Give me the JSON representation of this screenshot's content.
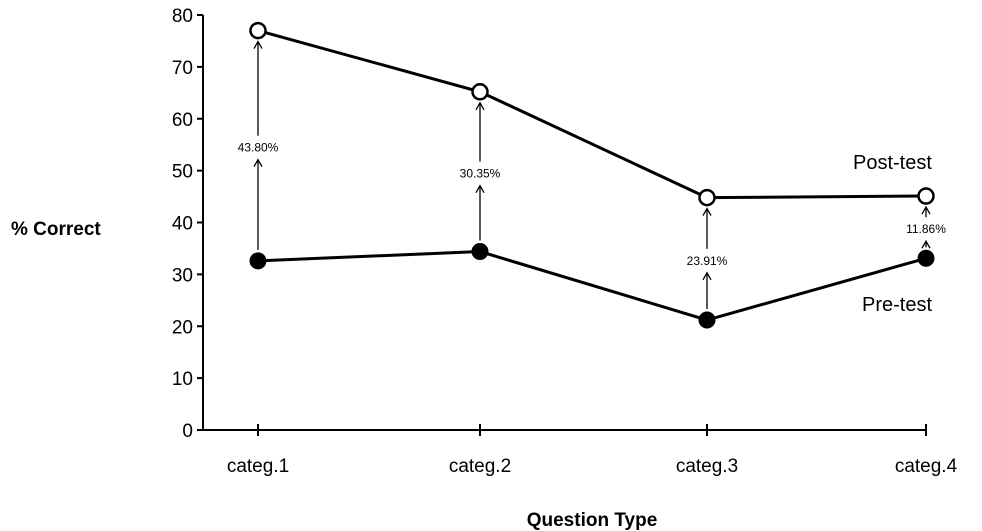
{
  "chart_data": {
    "type": "line",
    "xlabel": "Question Type",
    "ylabel": "% Correct",
    "categories": [
      "categ.1",
      "categ.2",
      "categ.3",
      "categ.4"
    ],
    "ylim": [
      0,
      80
    ],
    "yticks": [
      0,
      10,
      20,
      30,
      40,
      50,
      60,
      70,
      80
    ],
    "grid": false,
    "series": [
      {
        "name": "Post-test",
        "values": [
          77,
          65.2,
          44.8,
          45.1
        ],
        "marker": "open-circle",
        "color": "#000000"
      },
      {
        "name": "Pre-test",
        "values": [
          32.6,
          34.4,
          21.2,
          33.1
        ],
        "marker": "filled-circle",
        "color": "#000000"
      }
    ],
    "annotations": [
      {
        "category": "categ.1",
        "text": "43.80%"
      },
      {
        "category": "categ.2",
        "text": "30.35%"
      },
      {
        "category": "categ.3",
        "text": "23.91%"
      },
      {
        "category": "categ.4",
        "text": "11.86%"
      }
    ]
  }
}
